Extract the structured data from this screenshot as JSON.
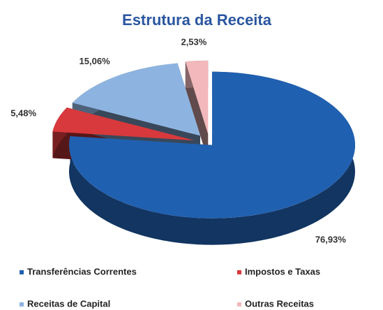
{
  "chart_data": {
    "type": "pie3d",
    "title": "Estrutura da Receita",
    "categories": [
      "Transferências Correntes",
      "Impostos e Taxas",
      "Receitas de Capital",
      "Outras Receitas"
    ],
    "values": [
      76.93,
      5.48,
      15.06,
      2.53
    ],
    "value_labels": [
      "76,93%",
      "5,48%",
      "15,06%",
      "2,53%"
    ],
    "colors": [
      "#2060b0",
      "#d8393c",
      "#8db4e0",
      "#f2b8bb"
    ],
    "legend": "bottom"
  }
}
